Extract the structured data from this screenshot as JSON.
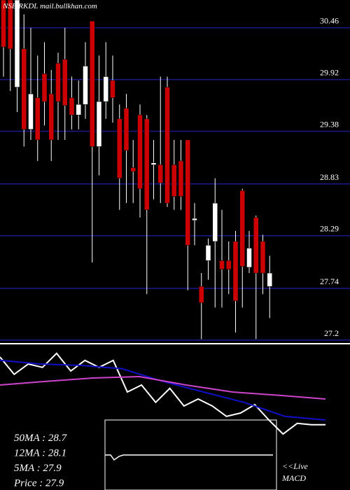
{
  "chart_data": [
    {
      "type": "candlestick",
      "title": "NSE RKDL mail.bullkhan.com",
      "up_color": "#ffffff",
      "down_color": "#cc0000",
      "grid": true,
      "grid_color": "#1a1a8c",
      "ylim": [
        27.17,
        30.75
      ],
      "yticks": [
        30.46,
        29.92,
        29.38,
        28.83,
        28.29,
        27.74,
        27.2
      ],
      "open": [
        30.75,
        30.75,
        29.84,
        30.24,
        29.4,
        29.73,
        29.98,
        29.77,
        30.09,
        30.13,
        29.73,
        29.55,
        29.66,
        30.53,
        29.22,
        29.69,
        29.91,
        29.51,
        29.62,
        29.0,
        29.55,
        29.51,
        29.03,
        29.03,
        29.84,
        29.03,
        29.07,
        29.29,
        28.45,
        27.76,
        28.03,
        28.23,
        28.03,
        28.03,
        28.23,
        28.76,
        27.96,
        28.48,
        28.23,
        27.76
      ],
      "high": [
        30.75,
        30.75,
        30.75,
        30.6,
        30.46,
        30.17,
        30.31,
        30.02,
        30.2,
        30.46,
        29.95,
        29.91,
        30.31,
        30.53,
        30.17,
        30.31,
        30.17,
        29.66,
        29.77,
        29.29,
        29.66,
        29.55,
        29.29,
        29.95,
        29.95,
        29.29,
        29.29,
        29.29,
        28.63,
        27.9,
        28.26,
        28.89,
        28.56,
        28.23,
        28.34,
        28.78,
        28.34,
        28.5,
        28.3,
        28.08
      ],
      "low": [
        29.95,
        29.8,
        29.58,
        29.22,
        29.29,
        29.07,
        29.44,
        29.07,
        29.29,
        29.29,
        29.4,
        29.4,
        29.51,
        28.01,
        28.92,
        29.51,
        29.47,
        28.56,
        28.63,
        28.63,
        28.48,
        27.68,
        28.67,
        28.63,
        28.59,
        28.56,
        28.56,
        27.72,
        28.19,
        27.21,
        27.83,
        27.54,
        27.54,
        27.68,
        27.28,
        27.54,
        27.9,
        27.21,
        27.68,
        27.43
      ],
      "close": [
        30.26,
        30.24,
        30.75,
        29.4,
        29.77,
        29.29,
        29.69,
        29.29,
        29.69,
        29.65,
        29.55,
        29.66,
        30.06,
        29.22,
        29.69,
        29.95,
        29.73,
        28.89,
        29.18,
        28.96,
        28.78,
        28.56,
        29.05,
        28.84,
        28.63,
        28.7,
        28.7,
        28.19,
        28.47,
        27.59,
        28.19,
        28.63,
        27.94,
        27.94,
        27.61,
        27.97,
        28.16,
        27.9,
        27.9,
        27.9
      ]
    },
    {
      "type": "line",
      "ylim": [
        27.4,
        30.4
      ],
      "series": [
        {
          "color": "#ffffff",
          "values": [
            29.9,
            29.28,
            29.65,
            29.53,
            30.03,
            29.4,
            29.78,
            29.53,
            29.78,
            28.65,
            28.9,
            28.28,
            28.78,
            28.15,
            28.4,
            28.15,
            27.78,
            27.9,
            28.2,
            27.65,
            27.15,
            27.53,
            27.48,
            27.48
          ]
        },
        {
          "color": "#1010c8",
          "values": [
            29.78,
            29.65,
            29.6,
            29.48,
            29.03,
            28.65,
            28.28,
            27.78,
            27.65
          ]
        },
        {
          "color": "#cc44cc",
          "values": [
            28.9,
            29.03,
            29.15,
            29.2,
            28.9,
            28.65,
            28.53,
            28.4
          ]
        }
      ],
      "ma_labels": [
        "50MA : 28.7",
        "12MA : 28.1",
        "5MA : 27.9",
        "Price  : 27.9"
      ],
      "macd_label": [
        "<<Live",
        "MACD"
      ]
    }
  ]
}
